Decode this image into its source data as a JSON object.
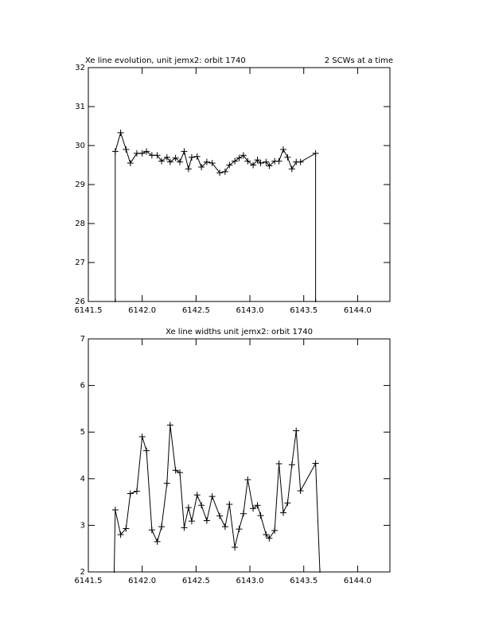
{
  "chart_data": [
    {
      "type": "line",
      "title": "Xe line evolution, unit jemx2: orbit 1740",
      "annotation": "2 SCWs at a time",
      "x": [
        6141.75,
        6141.75,
        6141.8,
        6141.85,
        6141.89,
        6141.95,
        6142.0,
        6142.04,
        6142.09,
        6142.14,
        6142.18,
        6142.23,
        6142.26,
        6142.31,
        6142.35,
        6142.39,
        6142.43,
        6142.46,
        6142.51,
        6142.55,
        6142.6,
        6142.65,
        6142.72,
        6142.77,
        6142.81,
        6142.86,
        6142.9,
        6142.94,
        6142.98,
        6143.03,
        6143.07,
        6143.1,
        6143.15,
        6143.18,
        6143.23,
        6143.27,
        6143.31,
        6143.35,
        6143.39,
        6143.43,
        6143.47,
        6143.61,
        6143.61
      ],
      "series": [
        {
          "color": "#000000",
          "values": [
            26,
            29.85,
            30.33,
            29.9,
            29.55,
            29.8,
            29.8,
            29.85,
            29.75,
            29.75,
            29.6,
            29.7,
            29.58,
            29.68,
            29.58,
            29.85,
            29.4,
            29.7,
            29.72,
            29.45,
            29.58,
            29.55,
            29.3,
            29.33,
            29.5,
            29.6,
            29.68,
            29.75,
            29.6,
            29.5,
            29.63,
            29.55,
            29.58,
            29.48,
            29.6,
            29.6,
            29.9,
            29.7,
            29.4,
            29.58,
            29.58,
            29.8,
            26
          ]
        }
      ],
      "xlim": [
        6141.5,
        6144.3
      ],
      "ylim": [
        26,
        32
      ],
      "xticks": [
        {
          "value": 6141.5,
          "label": "6141.5"
        },
        {
          "value": 6142.0,
          "label": "6142.0"
        },
        {
          "value": 6142.5,
          "label": "6142.5"
        },
        {
          "value": 6143.0,
          "label": "6143.0"
        },
        {
          "value": 6143.5,
          "label": "6143.5"
        },
        {
          "value": 6144.0,
          "label": "6144.0"
        }
      ],
      "yticks": [
        26,
        27,
        28,
        29,
        30,
        31,
        32
      ]
    },
    {
      "type": "line",
      "title": "Xe line widths unit jemx2: orbit 1740",
      "x": [
        6141.74,
        6141.75,
        6141.8,
        6141.85,
        6141.89,
        6141.95,
        6142.0,
        6142.04,
        6142.09,
        6142.14,
        6142.18,
        6142.23,
        6142.26,
        6142.31,
        6142.35,
        6142.39,
        6142.43,
        6142.46,
        6142.51,
        6142.55,
        6142.6,
        6142.65,
        6142.72,
        6142.77,
        6142.81,
        6142.86,
        6142.9,
        6142.94,
        6142.98,
        6143.03,
        6143.07,
        6143.1,
        6143.15,
        6143.18,
        6143.23,
        6143.27,
        6143.31,
        6143.35,
        6143.39,
        6143.43,
        6143.47,
        6143.61,
        6143.65
      ],
      "series": [
        {
          "color": "#000000",
          "values": [
            2,
            3.33,
            2.8,
            2.93,
            3.68,
            3.73,
            4.9,
            4.6,
            2.9,
            2.65,
            2.97,
            3.9,
            5.15,
            4.18,
            4.13,
            2.95,
            3.38,
            3.09,
            3.65,
            3.43,
            3.1,
            3.62,
            3.2,
            2.97,
            3.45,
            2.53,
            2.92,
            3.25,
            3.98,
            3.36,
            3.43,
            3.21,
            2.8,
            2.72,
            2.89,
            4.32,
            3.27,
            3.48,
            4.3,
            5.03,
            3.74,
            4.33,
            2
          ]
        }
      ],
      "xlim": [
        6141.5,
        6144.3
      ],
      "ylim": [
        2,
        7
      ],
      "xticks": [
        {
          "value": 6141.5,
          "label": "6141.5"
        },
        {
          "value": 6142.0,
          "label": "6142.0"
        },
        {
          "value": 6142.5,
          "label": "6142.5"
        },
        {
          "value": 6143.0,
          "label": "6143.0"
        },
        {
          "value": 6143.5,
          "label": "6143.5"
        },
        {
          "value": 6144.0,
          "label": "6144.0"
        }
      ],
      "yticks": [
        2,
        3,
        4,
        5,
        6,
        7
      ]
    }
  ]
}
